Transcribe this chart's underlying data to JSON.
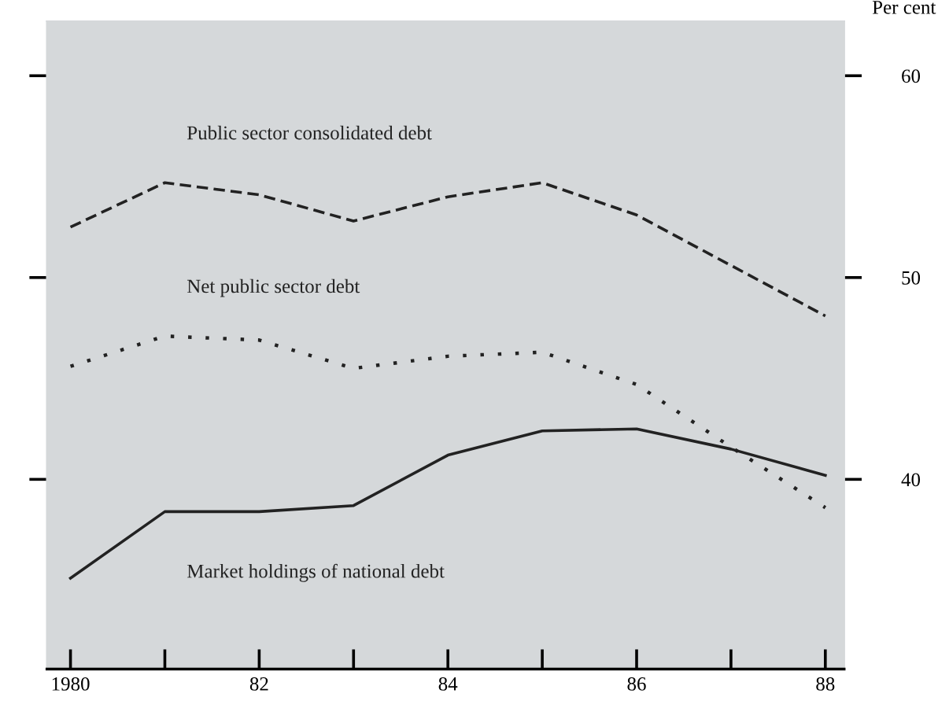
{
  "chart_data": {
    "type": "line",
    "ylabel": "Per cent",
    "x": [
      1980,
      1981,
      1982,
      1983,
      1984,
      1985,
      1986,
      1987,
      1988
    ],
    "xlim": [
      1979.75,
      1988.2
    ],
    "xticks": [
      1980,
      {
        "value": 1981,
        "label": null
      },
      {
        "value": 1982,
        "label": "82"
      },
      {
        "value": 1983,
        "label": null
      },
      {
        "value": 1984,
        "label": "84"
      },
      {
        "value": 1985,
        "label": null
      },
      {
        "value": 1986,
        "label": "86"
      },
      {
        "value": 1987,
        "label": null
      },
      {
        "value": 1988,
        "label": "88"
      }
    ],
    "ylim": [
      30.6,
      62.7
    ],
    "yticks": [
      40,
      50,
      60
    ],
    "grid": false,
    "legend": false,
    "marker": "none",
    "series": [
      {
        "name": "Public sector consolidated debt",
        "color": "#222222",
        "line_style": "dashed",
        "values": [
          52.5,
          54.7,
          54.1,
          52.8,
          54.0,
          54.7,
          53.1,
          50.6,
          48.1
        ]
      },
      {
        "name": "Net public sector debt",
        "color": "#222222",
        "line_style": "dotted",
        "values": [
          45.6,
          47.1,
          46.9,
          45.5,
          46.1,
          46.3,
          44.7,
          41.6,
          38.6
        ]
      },
      {
        "name": "Market holdings of national debt",
        "color": "#222222",
        "line_style": "solid",
        "values": [
          35.1,
          38.4,
          38.4,
          38.7,
          41.2,
          42.4,
          42.5,
          41.5,
          40.2
        ]
      }
    ]
  }
}
